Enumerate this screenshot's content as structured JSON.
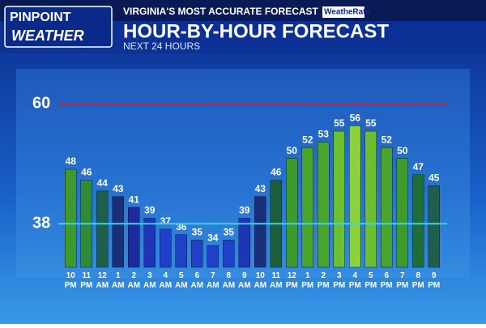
{
  "chart_data": {
    "type": "bar",
    "logo": {
      "line1": "PINPOINT",
      "line2": "WEATHER"
    },
    "tagline": "VIRGINIA'S MOST ACCURATE FORECAST",
    "badge": "WeatheRate",
    "title": "HOUR-BY-HOUR FORECAST",
    "subtitle": "NEXT 24 HOURS",
    "categories": [
      "10 PM",
      "11 PM",
      "12 AM",
      "1 AM",
      "2 AM",
      "3 AM",
      "4 AM",
      "5 AM",
      "6 AM",
      "7 AM",
      "8 AM",
      "9 AM",
      "10 AM",
      "11 AM",
      "12 PM",
      "1 PM",
      "2 PM",
      "3 PM",
      "4 PM",
      "5 PM",
      "6 PM",
      "7 PM",
      "8 PM",
      "9 PM"
    ],
    "values": [
      48,
      46,
      44,
      43,
      41,
      39,
      37,
      36,
      35,
      34,
      35,
      39,
      43,
      46,
      50,
      52,
      53,
      55,
      56,
      55,
      52,
      50,
      47,
      45
    ],
    "colors": [
      "#3f9a2e",
      "#2f8a3a",
      "#1f5e4a",
      "#1a2f7a",
      "#1c2aa0",
      "#1f35b8",
      "#2040c8",
      "#2040c8",
      "#2040c8",
      "#2040c8",
      "#2040c8",
      "#1f35b8",
      "#1a2f7a",
      "#1f5e3a",
      "#3f9a2e",
      "#4aa52c",
      "#4aa52c",
      "#6cbf2e",
      "#8ad13a",
      "#6cbf2e",
      "#4aa52c",
      "#3f9a2e",
      "#1f6e3a",
      "#1f5e4a"
    ],
    "ylim": [
      30,
      62
    ],
    "reference_lines": [
      {
        "value": 60,
        "color": "#c0272d"
      },
      {
        "value": 38,
        "color": "#3fd0f0"
      }
    ]
  }
}
